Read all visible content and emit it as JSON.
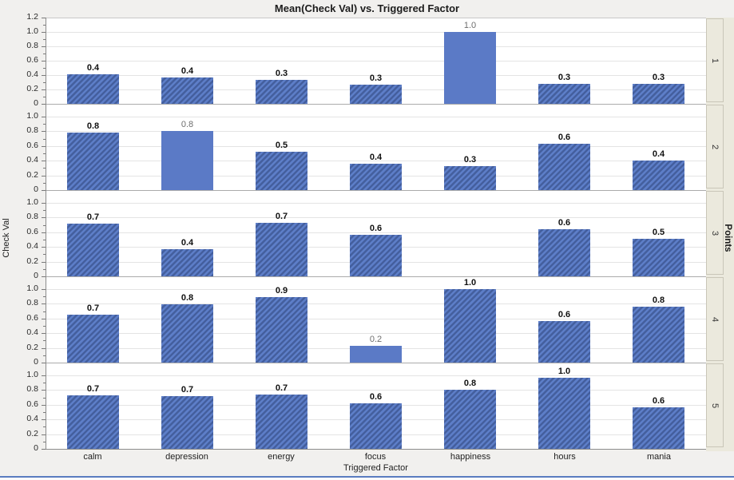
{
  "colors": {
    "page_bg": "#f1f0ee",
    "plot_bg": "#ffffff",
    "bar_solid": "#5b7ac6",
    "bar_hatch_light": "#5d7ec8",
    "bar_hatch_dark": "#445f9e",
    "solid_label_color": "#6e6e6e",
    "gridline": "#e4e4e4",
    "panel_divider": "#ababab",
    "axis_line": "#8c8c8c",
    "frame_top": "#c8c8c8",
    "strip_bg": "#ebe9dd",
    "strip_border": "#c9c6b8",
    "bottom_border": "#5a7cc0"
  },
  "chart_data": {
    "type": "bar",
    "title": "Mean(Check Val) vs. Triggered Factor",
    "xlabel": "Triggered Factor",
    "ylabel": "Check Val",
    "group_label": "Points",
    "legend_position": "none",
    "grid": true,
    "categories": [
      "calm",
      "depression",
      "energy",
      "focus",
      "happiness",
      "hours",
      "mania"
    ],
    "panels": [
      {
        "group": "1",
        "ymax": 1.2,
        "yticks": [
          "1.2",
          "1.0",
          "0.8",
          "0.6",
          "0.4",
          "0.2",
          "0"
        ],
        "bars": [
          {
            "category": "calm",
            "label": "0.4",
            "value": 0.41,
            "style": "hatched"
          },
          {
            "category": "depression",
            "label": "0.4",
            "value": 0.37,
            "style": "hatched"
          },
          {
            "category": "energy",
            "label": "0.3",
            "value": 0.33,
            "style": "hatched"
          },
          {
            "category": "focus",
            "label": "0.3",
            "value": 0.27,
            "style": "hatched"
          },
          {
            "category": "happiness",
            "label": "1.0",
            "value": 1.0,
            "style": "solid"
          },
          {
            "category": "hours",
            "label": "0.3",
            "value": 0.28,
            "style": "hatched"
          },
          {
            "category": "mania",
            "label": "0.3",
            "value": 0.28,
            "style": "hatched"
          }
        ]
      },
      {
        "group": "2",
        "ymax": 1.0,
        "yticks": [
          "1.0",
          "0.8",
          "0.6",
          "0.4",
          "0.2",
          "0"
        ],
        "bars": [
          {
            "category": "calm",
            "label": "0.8",
            "value": 0.78,
            "style": "hatched"
          },
          {
            "category": "depression",
            "label": "0.8",
            "value": 0.8,
            "style": "solid"
          },
          {
            "category": "energy",
            "label": "0.5",
            "value": 0.52,
            "style": "hatched"
          },
          {
            "category": "focus",
            "label": "0.4",
            "value": 0.36,
            "style": "hatched"
          },
          {
            "category": "happiness",
            "label": "0.3",
            "value": 0.33,
            "style": "hatched"
          },
          {
            "category": "hours",
            "label": "0.6",
            "value": 0.63,
            "style": "hatched"
          },
          {
            "category": "mania",
            "label": "0.4",
            "value": 0.4,
            "style": "hatched"
          }
        ]
      },
      {
        "group": "3",
        "ymax": 1.0,
        "yticks": [
          "1.0",
          "0.8",
          "0.6",
          "0.4",
          "0.2",
          "0"
        ],
        "bars": [
          {
            "category": "calm",
            "label": "0.7",
            "value": 0.72,
            "style": "hatched"
          },
          {
            "category": "depression",
            "label": "0.4",
            "value": 0.37,
            "style": "hatched"
          },
          {
            "category": "energy",
            "label": "0.7",
            "value": 0.73,
            "style": "hatched"
          },
          {
            "category": "focus",
            "label": "0.6",
            "value": 0.57,
            "style": "hatched"
          },
          {
            "category": "happiness",
            "label": null,
            "value": null,
            "style": "none"
          },
          {
            "category": "hours",
            "label": "0.6",
            "value": 0.64,
            "style": "hatched"
          },
          {
            "category": "mania",
            "label": "0.5",
            "value": 0.51,
            "style": "hatched"
          }
        ]
      },
      {
        "group": "4",
        "ymax": 1.0,
        "yticks": [
          "1.0",
          "0.8",
          "0.6",
          "0.4",
          "0.2",
          "0"
        ],
        "bars": [
          {
            "category": "calm",
            "label": "0.7",
            "value": 0.65,
            "style": "hatched"
          },
          {
            "category": "depression",
            "label": "0.8",
            "value": 0.79,
            "style": "hatched"
          },
          {
            "category": "energy",
            "label": "0.9",
            "value": 0.89,
            "style": "hatched"
          },
          {
            "category": "focus",
            "label": "0.2",
            "value": 0.23,
            "style": "solid"
          },
          {
            "category": "happiness",
            "label": "1.0",
            "value": 1.0,
            "style": "hatched"
          },
          {
            "category": "hours",
            "label": "0.6",
            "value": 0.57,
            "style": "hatched"
          },
          {
            "category": "mania",
            "label": "0.8",
            "value": 0.76,
            "style": "hatched"
          }
        ]
      },
      {
        "group": "5",
        "ymax": 1.0,
        "yticks": [
          "1.0",
          "0.8",
          "0.6",
          "0.4",
          "0.2",
          "0"
        ],
        "bars": [
          {
            "category": "calm",
            "label": "0.7",
            "value": 0.73,
            "style": "hatched"
          },
          {
            "category": "depression",
            "label": "0.7",
            "value": 0.72,
            "style": "hatched"
          },
          {
            "category": "energy",
            "label": "0.7",
            "value": 0.74,
            "style": "hatched"
          },
          {
            "category": "focus",
            "label": "0.6",
            "value": 0.62,
            "style": "hatched"
          },
          {
            "category": "happiness",
            "label": "0.8",
            "value": 0.8,
            "style": "hatched"
          },
          {
            "category": "hours",
            "label": "1.0",
            "value": 0.97,
            "style": "hatched"
          },
          {
            "category": "mania",
            "label": "0.6",
            "value": 0.56,
            "style": "hatched"
          }
        ]
      }
    ]
  }
}
